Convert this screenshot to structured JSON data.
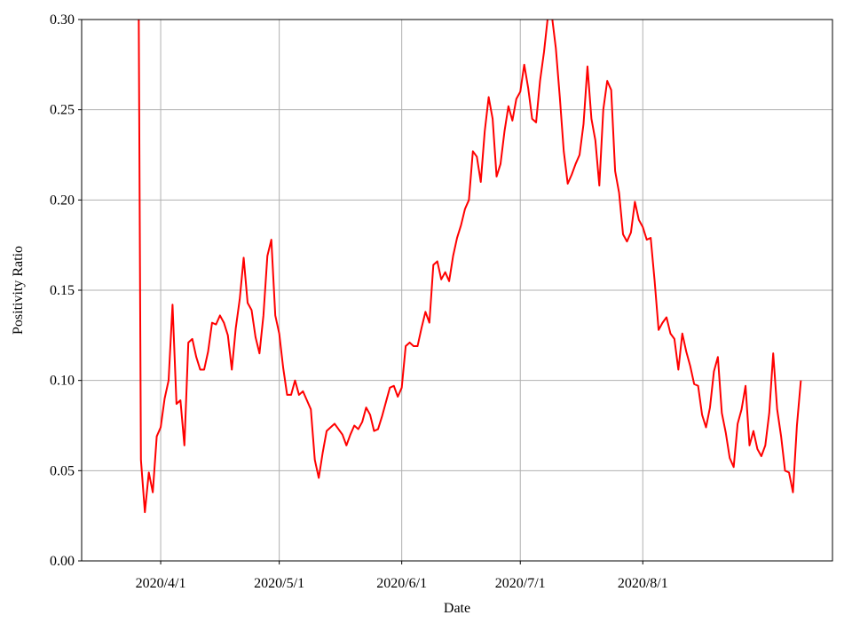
{
  "chart_data": {
    "type": "line",
    "xlabel": "Date",
    "ylabel": "Positivity Ratio",
    "color": "#ff0000",
    "grid": true,
    "x": [
      "2020/3/26",
      "2020/3/27",
      "2020/3/28",
      "2020/3/29",
      "2020/3/30",
      "2020/3/31",
      "2020/4/1",
      "2020/4/2",
      "2020/4/3",
      "2020/4/4",
      "2020/4/5",
      "2020/4/6",
      "2020/4/7",
      "2020/4/8",
      "2020/4/9",
      "2020/4/10",
      "2020/4/11",
      "2020/4/12",
      "2020/4/13",
      "2020/4/14",
      "2020/4/15",
      "2020/4/16",
      "2020/4/17",
      "2020/4/18",
      "2020/4/19",
      "2020/4/20",
      "2020/4/21",
      "2020/4/22",
      "2020/4/23",
      "2020/4/24",
      "2020/4/25",
      "2020/4/26",
      "2020/4/27",
      "2020/4/28",
      "2020/4/29",
      "2020/4/30",
      "2020/5/1",
      "2020/5/2",
      "2020/5/3",
      "2020/5/4",
      "2020/5/5",
      "2020/5/6",
      "2020/5/7",
      "2020/5/8",
      "2020/5/9",
      "2020/5/10",
      "2020/5/11",
      "2020/5/12",
      "2020/5/13",
      "2020/5/14",
      "2020/5/15",
      "2020/5/16",
      "2020/5/17",
      "2020/5/18",
      "2020/5/19",
      "2020/5/20",
      "2020/5/21",
      "2020/5/22",
      "2020/5/23",
      "2020/5/24",
      "2020/5/25",
      "2020/5/26",
      "2020/5/27",
      "2020/5/28",
      "2020/5/29",
      "2020/5/30",
      "2020/5/31",
      "2020/6/1",
      "2020/6/2",
      "2020/6/3",
      "2020/6/4",
      "2020/6/5",
      "2020/6/6",
      "2020/6/7",
      "2020/6/8",
      "2020/6/9",
      "2020/6/10",
      "2020/6/11",
      "2020/6/12",
      "2020/6/13",
      "2020/6/14",
      "2020/6/15",
      "2020/6/16",
      "2020/6/17",
      "2020/6/18",
      "2020/6/19",
      "2020/6/20",
      "2020/6/21",
      "2020/6/22",
      "2020/6/23",
      "2020/6/24",
      "2020/6/25",
      "2020/6/26",
      "2020/6/27",
      "2020/6/28",
      "2020/6/29",
      "2020/6/30",
      "2020/7/1",
      "2020/7/2",
      "2020/7/3",
      "2020/7/4",
      "2020/7/5",
      "2020/7/6",
      "2020/7/7",
      "2020/7/8",
      "2020/7/9",
      "2020/7/10",
      "2020/7/11",
      "2020/7/12",
      "2020/7/13",
      "2020/7/14",
      "2020/7/15",
      "2020/7/16",
      "2020/7/17",
      "2020/7/18",
      "2020/7/19",
      "2020/7/20",
      "2020/7/21",
      "2020/7/22",
      "2020/7/23",
      "2020/7/24",
      "2020/7/25",
      "2020/7/26",
      "2020/7/27",
      "2020/7/28",
      "2020/7/29",
      "2020/7/30",
      "2020/7/31",
      "2020/8/1",
      "2020/8/2",
      "2020/8/3",
      "2020/8/4",
      "2020/8/5",
      "2020/8/6",
      "2020/8/7",
      "2020/8/8",
      "2020/8/9",
      "2020/8/10",
      "2020/8/11",
      "2020/8/12",
      "2020/8/13",
      "2020/8/14",
      "2020/8/15",
      "2020/8/16",
      "2020/8/17",
      "2020/8/18",
      "2020/8/19",
      "2020/8/20",
      "2020/8/21",
      "2020/8/22",
      "2020/8/23",
      "2020/8/24",
      "2020/8/25",
      "2020/8/26",
      "2020/8/27",
      "2020/8/28",
      "2020/8/29",
      "2020/8/30",
      "2020/8/31",
      "2020/9/1",
      "2020/9/2",
      "2020/9/3",
      "2020/9/4",
      "2020/9/5",
      "2020/9/6",
      "2020/9/7",
      "2020/9/8",
      "2020/9/9",
      "2020/9/10"
    ],
    "values": [
      0.5,
      0.056,
      0.027,
      0.049,
      0.038,
      0.069,
      0.074,
      0.09,
      0.1,
      0.142,
      0.087,
      0.089,
      0.064,
      0.121,
      0.123,
      0.113,
      0.106,
      0.106,
      0.116,
      0.132,
      0.131,
      0.136,
      0.132,
      0.125,
      0.106,
      0.129,
      0.145,
      0.168,
      0.143,
      0.139,
      0.124,
      0.115,
      0.136,
      0.169,
      0.178,
      0.136,
      0.126,
      0.107,
      0.092,
      0.092,
      0.1,
      0.092,
      0.094,
      0.089,
      0.084,
      0.056,
      0.046,
      0.06,
      0.072,
      0.074,
      0.076,
      0.073,
      0.07,
      0.064,
      0.07,
      0.075,
      0.073,
      0.077,
      0.085,
      0.081,
      0.072,
      0.073,
      0.08,
      0.088,
      0.096,
      0.097,
      0.091,
      0.096,
      0.119,
      0.121,
      0.119,
      0.119,
      0.129,
      0.138,
      0.132,
      0.164,
      0.166,
      0.156,
      0.16,
      0.155,
      0.169,
      0.179,
      0.186,
      0.195,
      0.2,
      0.227,
      0.224,
      0.21,
      0.238,
      0.257,
      0.245,
      0.213,
      0.22,
      0.238,
      0.252,
      0.244,
      0.256,
      0.26,
      0.275,
      0.262,
      0.245,
      0.243,
      0.266,
      0.282,
      0.302,
      0.302,
      0.284,
      0.257,
      0.227,
      0.209,
      0.214,
      0.22,
      0.225,
      0.242,
      0.274,
      0.245,
      0.233,
      0.208,
      0.25,
      0.266,
      0.261,
      0.216,
      0.204,
      0.181,
      0.177,
      0.182,
      0.199,
      0.189,
      0.185,
      0.178,
      0.179,
      0.155,
      0.128,
      0.132,
      0.135,
      0.126,
      0.123,
      0.106,
      0.126,
      0.116,
      0.108,
      0.098,
      0.097,
      0.081,
      0.074,
      0.085,
      0.105,
      0.113,
      0.082,
      0.071,
      0.057,
      0.052,
      0.076,
      0.084,
      0.097,
      0.064,
      0.072,
      0.062,
      0.058,
      0.064,
      0.082,
      0.115,
      0.084,
      0.069,
      0.05,
      0.049,
      0.038,
      0.075,
      0.1
    ],
    "xlim": [
      "2020/3/12",
      "2020/9/18"
    ],
    "xticks": [
      "2020/4/1",
      "2020/5/1",
      "2020/6/1",
      "2020/7/1",
      "2020/8/1"
    ],
    "ylim": [
      0,
      0.3
    ],
    "yticks": [
      {
        "value": 0,
        "label": "0.00"
      },
      {
        "value": 0.05,
        "label": "0.05"
      },
      {
        "value": 0.1,
        "label": "0.10"
      },
      {
        "value": 0.15,
        "label": "0.15"
      },
      {
        "value": 0.2,
        "label": "0.20"
      },
      {
        "value": 0.25,
        "label": "0.25"
      },
      {
        "value": 0.3,
        "label": "0.30"
      }
    ]
  }
}
